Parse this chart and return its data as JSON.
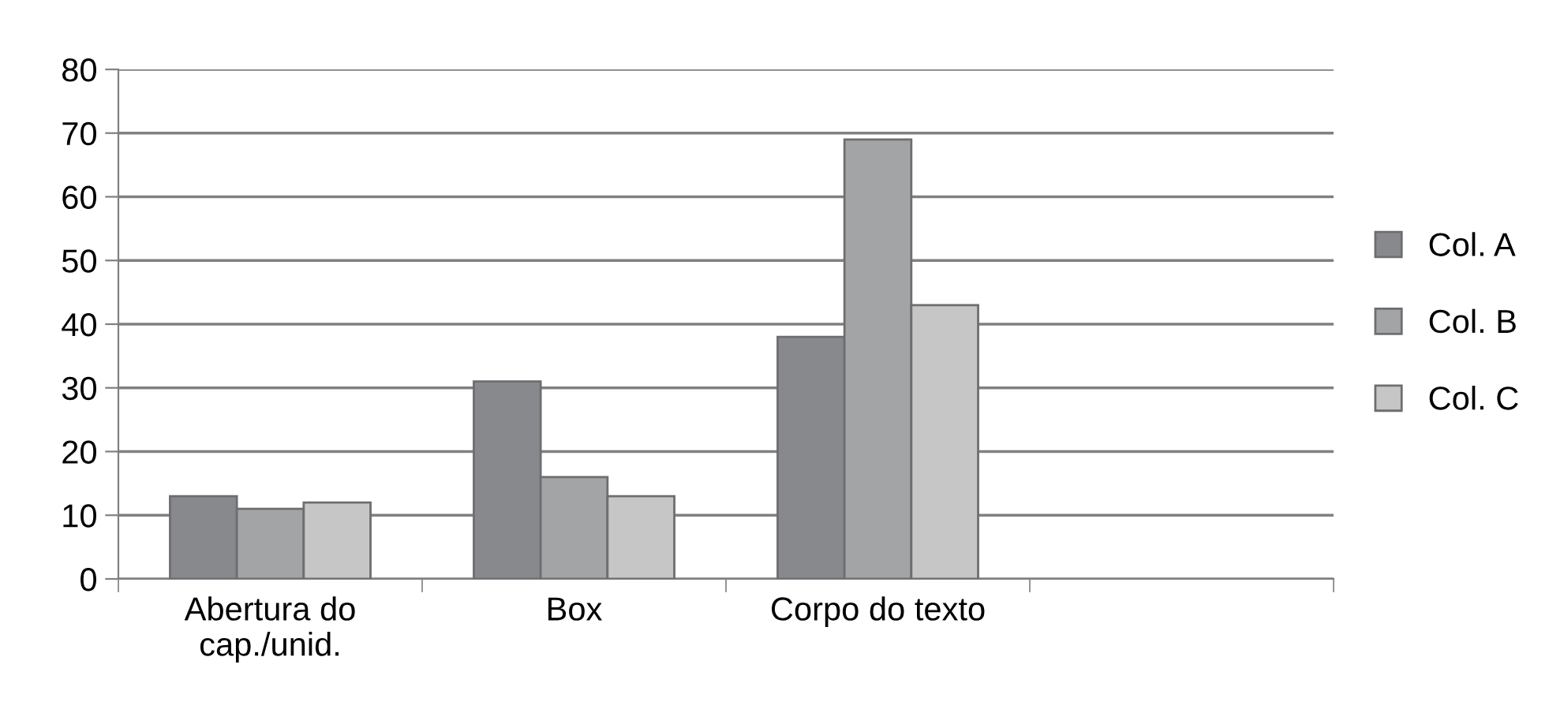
{
  "chart_data": {
    "type": "bar",
    "categories": [
      "Abertura do\ncap./unid.",
      "Box",
      "Corpo do texto",
      null
    ],
    "series": [
      {
        "name": "Col. A",
        "color": "#88898d",
        "values": [
          13,
          31,
          38,
          null
        ]
      },
      {
        "name": "Col. B",
        "color": "#a3a4a6",
        "values": [
          11,
          16,
          69,
          null
        ]
      },
      {
        "name": "Col. C",
        "color": "#c6c6c6",
        "values": [
          12,
          13,
          43,
          null
        ]
      }
    ],
    "ylim": [
      0,
      80
    ],
    "yticks": [
      0,
      10,
      20,
      30,
      40,
      50,
      60,
      70,
      80
    ],
    "grid": "y",
    "legend": "right"
  }
}
